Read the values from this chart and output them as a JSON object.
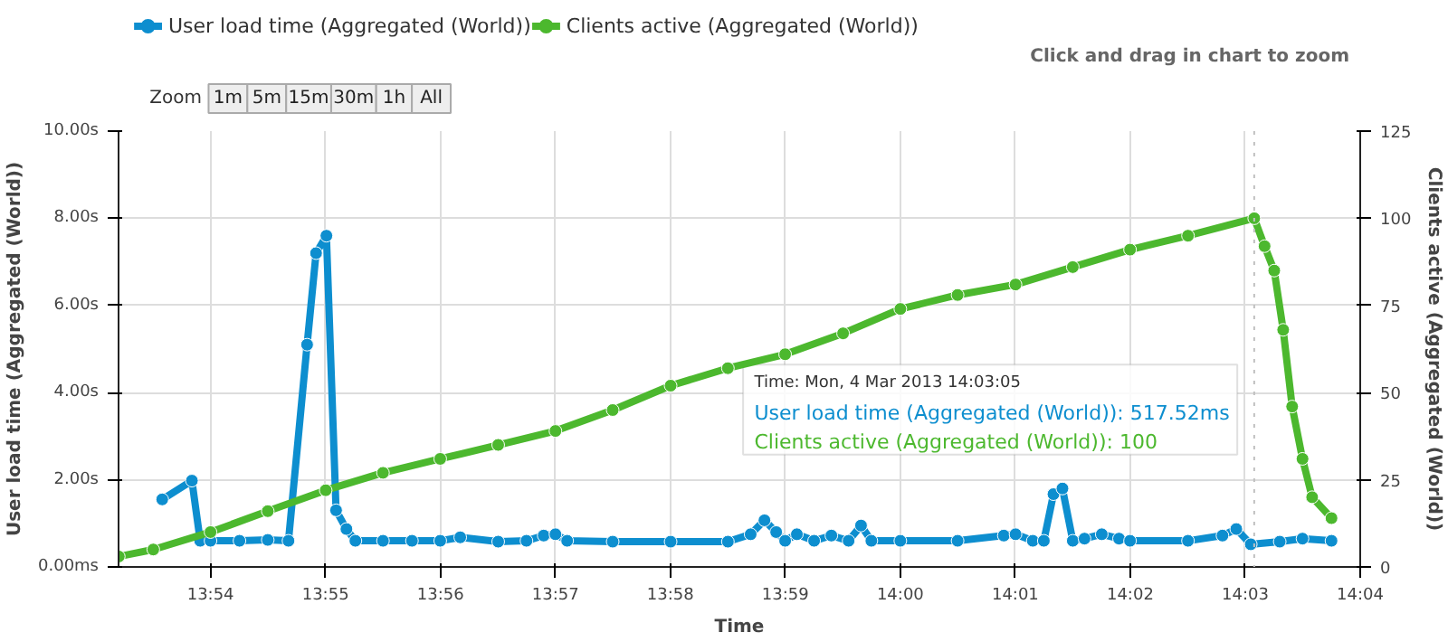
{
  "chart_data": {
    "type": "line",
    "xlabel": "Time",
    "ylabel": "User load time (Aggregated (World))",
    "y2label": "Clients active (Aggregated (World))",
    "xlim": [
      13.886667,
      14.066667
    ],
    "xticks": [
      {
        "value": 13.9,
        "label": "13:54"
      },
      {
        "value": 13.916667,
        "label": "13:55"
      },
      {
        "value": 13.933333,
        "label": "13:56"
      },
      {
        "value": 13.95,
        "label": "13:57"
      },
      {
        "value": 13.966667,
        "label": "13:58"
      },
      {
        "value": 13.983333,
        "label": "13:59"
      },
      {
        "value": 14.0,
        "label": "14:00"
      },
      {
        "value": 14.016667,
        "label": "14:01"
      },
      {
        "value": 14.033333,
        "label": "14:02"
      },
      {
        "value": 14.05,
        "label": "14:03"
      },
      {
        "value": 14.066667,
        "label": "14:04"
      }
    ],
    "ylim": [
      0,
      10
    ],
    "yticks": [
      {
        "value": 0,
        "label": "0.00ms"
      },
      {
        "value": 2,
        "label": "2.00s"
      },
      {
        "value": 4,
        "label": "4.00s"
      },
      {
        "value": 6,
        "label": "6.00s"
      },
      {
        "value": 8,
        "label": "8.00s"
      },
      {
        "value": 10,
        "label": "10.00s"
      }
    ],
    "y2lim": [
      0,
      125
    ],
    "y2ticks": [
      0,
      25,
      50,
      75,
      100,
      125
    ],
    "grid": true,
    "legend": "top left",
    "marker": "circle",
    "line_style": "solid",
    "ref_lines": [
      {
        "axis": "x",
        "value": 14.0513,
        "label": null,
        "color": "#c0c0c0",
        "line_style": "dotted"
      }
    ],
    "annotations": [
      "Click and drag in chart to zoom",
      "Zoom",
      "1m",
      "5m",
      "15m",
      "30m",
      "1h",
      "All",
      "Time: Mon, 4 Mar 2013 14:03:05",
      "User load time (Aggregated (World)): 517.52ms",
      "Clients active (Aggregated (World)): 100"
    ],
    "series": [
      {
        "name": "User load time (Aggregated (World))",
        "color": "#0d8ecf",
        "x": [
          13.893,
          13.8973,
          13.8985,
          13.9,
          13.9042,
          13.9083,
          13.9113,
          13.914,
          13.9153,
          13.9168,
          13.9182,
          13.9197,
          13.921,
          13.925,
          13.9292,
          13.9333,
          13.9362,
          13.9417,
          13.9458,
          13.9483,
          13.95,
          13.9517,
          13.9583,
          13.9667,
          13.975,
          13.9783,
          13.9803,
          13.982,
          13.9833,
          13.985,
          13.9875,
          13.99,
          13.9925,
          13.9943,
          13.9958,
          14.0,
          14.0083,
          14.015,
          14.0167,
          14.0192,
          14.0208,
          14.0222,
          14.0235,
          14.025,
          14.0267,
          14.0292,
          14.0317,
          14.0333,
          14.0417,
          14.0467,
          14.0487,
          14.0508,
          14.055,
          14.0583,
          14.0625
        ],
        "values": [
          1.55,
          1.98,
          0.6,
          0.6,
          0.6,
          0.62,
          0.6,
          5.1,
          7.2,
          7.6,
          1.3,
          0.87,
          0.6,
          0.6,
          0.6,
          0.6,
          0.68,
          0.58,
          0.6,
          0.72,
          0.75,
          0.6,
          0.58,
          0.58,
          0.58,
          0.75,
          1.07,
          0.8,
          0.6,
          0.75,
          0.6,
          0.72,
          0.6,
          0.95,
          0.6,
          0.6,
          0.6,
          0.72,
          0.75,
          0.6,
          0.6,
          1.67,
          1.8,
          0.6,
          0.65,
          0.75,
          0.65,
          0.6,
          0.6,
          0.72,
          0.87,
          0.52,
          0.58,
          0.65,
          0.6
        ]
      },
      {
        "name": "Clients active (Aggregated (World))",
        "color": "#4cb82e",
        "axis": "y2",
        "x": [
          13.8867,
          13.8917,
          13.9,
          13.9083,
          13.9167,
          13.925,
          13.9333,
          13.9417,
          13.95,
          13.9583,
          13.9667,
          13.975,
          13.9833,
          13.9917,
          14.0,
          14.0083,
          14.0167,
          14.025,
          14.0333,
          14.0417,
          14.0513,
          14.0528,
          14.0542,
          14.0555,
          14.0568,
          14.0583,
          14.0597,
          14.0625
        ],
        "values": [
          3,
          5,
          10,
          16,
          22,
          27,
          31,
          35,
          39,
          45,
          52,
          57,
          61,
          67,
          74,
          78,
          81,
          86,
          91,
          95,
          100,
          92,
          85,
          68,
          46,
          31,
          20,
          14
        ]
      }
    ]
  }
}
